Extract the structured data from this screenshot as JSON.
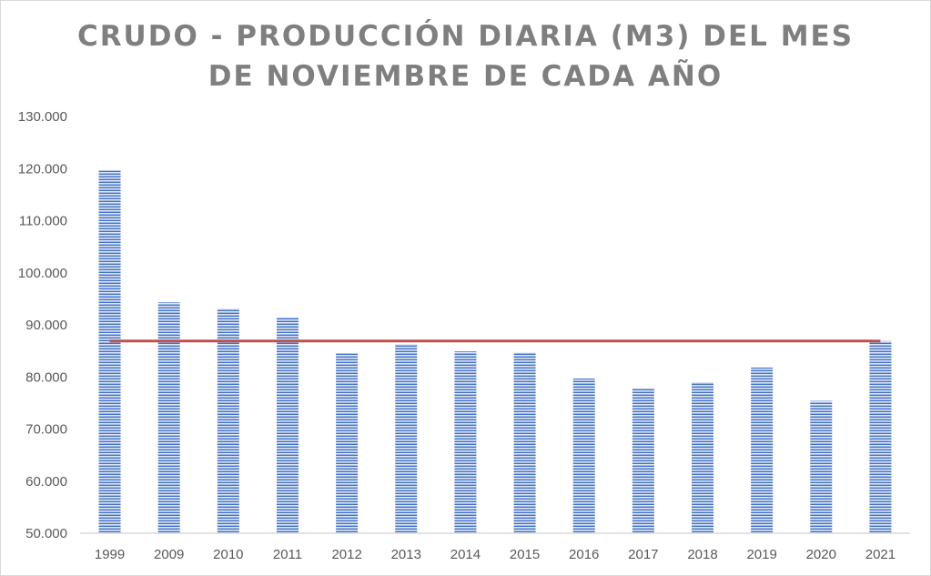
{
  "chart_data": {
    "type": "bar",
    "title_lines": [
      "CRUDO - PRODUCCIÓN DIARIA (M3) DEL MES",
      "DE NOVIEMBRE DE CADA AÑO"
    ],
    "xlabel": "",
    "ylabel": "",
    "categories": [
      "1999",
      "2009",
      "2010",
      "2011",
      "2012",
      "2013",
      "2014",
      "2015",
      "2016",
      "2017",
      "2018",
      "2019",
      "2020",
      "2021"
    ],
    "values": [
      119600,
      94300,
      93100,
      91400,
      84500,
      86300,
      84900,
      84700,
      79700,
      77800,
      79000,
      81800,
      75400,
      86900
    ],
    "reference_line": 86900,
    "ylim": [
      50000,
      130000
    ],
    "yticks": [
      50000,
      60000,
      70000,
      80000,
      90000,
      100000,
      110000,
      120000,
      130000
    ],
    "ytick_labels": [
      "50.000",
      "60.000",
      "70.000",
      "80.000",
      "90.000",
      "100.000",
      "110.000",
      "120.000",
      "130.000"
    ],
    "grid": false,
    "legend": "none",
    "colors": {
      "bar": "#4472c4",
      "bar_stripe": "#dce6f5",
      "reference_line": "#c0504d",
      "axis": "#d9d9d9",
      "text": "#595959",
      "title": "#7f7f7f"
    }
  }
}
